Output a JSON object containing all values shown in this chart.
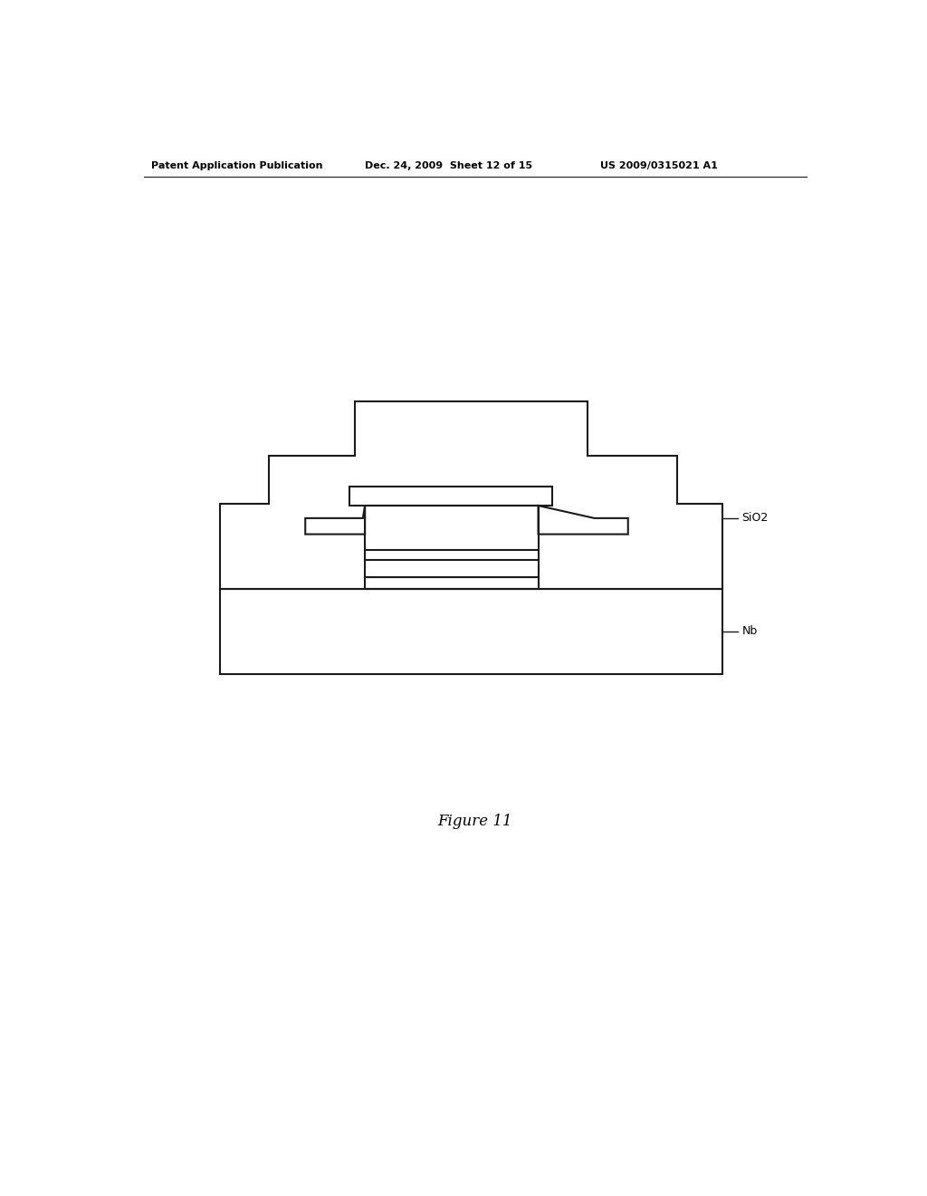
{
  "background_color": "#ffffff",
  "line_color": "#1a1a1a",
  "line_width": 1.5,
  "header_left": "Patent Application Publication",
  "header_middle": "Dec. 24, 2009  Sheet 12 of 15",
  "header_right": "US 2009/0315021 A1",
  "caption": "Figure 11",
  "label_sio2": "SiO2",
  "label_nb": "Nb",
  "fig_width": 10.24,
  "fig_height": 13.2,
  "dpi": 100
}
